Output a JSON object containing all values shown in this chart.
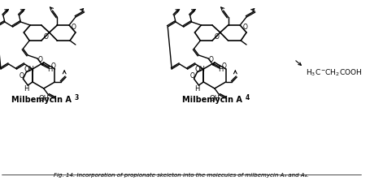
{
  "bg_color": "#ffffff",
  "fig_width": 4.56,
  "fig_height": 2.23,
  "dpi": 100,
  "label_A3": "Milbemycin A",
  "label_A4": "Milbemycin A",
  "sub_3": "3",
  "sub_4": "4",
  "propanoic": "H$_3$C",
  "propanoic2": "CH$_2$COOH"
}
